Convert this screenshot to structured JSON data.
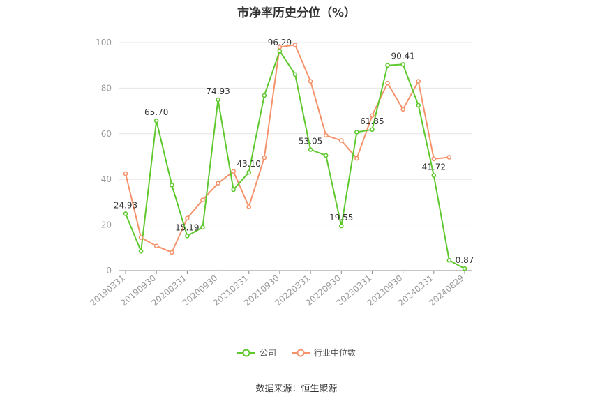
{
  "title": "市净率历史分位（%）",
  "legend": {
    "company": "公司",
    "industry": "行业中位数"
  },
  "source": "数据来源：恒生聚源",
  "colors": {
    "company": "#5ec82d",
    "industry": "#f4936b",
    "grid": "#e6e6e6",
    "axis": "#999999"
  },
  "chart_data": {
    "type": "line",
    "title": "市净率历史分位（%）",
    "ylim": [
      0,
      100
    ],
    "yticks": [
      0,
      20,
      40,
      60,
      80,
      100
    ],
    "grid": true,
    "legend_position": "bottom",
    "x_tick_labels": [
      "20190331",
      "20190930",
      "20200331",
      "20200930",
      "20210331",
      "20210930",
      "20220331",
      "20220930",
      "20230331",
      "20230930",
      "20240331",
      "20240829"
    ],
    "x_tick_indices": [
      0,
      2,
      4,
      6,
      8,
      10,
      12,
      14,
      16,
      18,
      20,
      22
    ],
    "series": [
      {
        "name": "公司",
        "key": "company",
        "values": [
          24.93,
          8.5,
          65.7,
          37.5,
          15.19,
          19.0,
          74.93,
          35.5,
          43.1,
          76.8,
          96.29,
          86.0,
          53.05,
          50.5,
          19.55,
          60.7,
          61.85,
          90.0,
          90.41,
          72.5,
          41.72,
          4.5,
          0.87
        ],
        "labels": {
          "0": "24.93",
          "2": "65.70",
          "4": "15.19",
          "6": "74.93",
          "8": "43.10",
          "10": "96.29",
          "12": "53.05",
          "14": "19.55",
          "16": "61.85",
          "18": "90.41",
          "20": "41.72",
          "22": "0.87"
        }
      },
      {
        "name": "行业中位数",
        "key": "industry",
        "values": [
          42.5,
          14.5,
          10.8,
          8.0,
          23.0,
          31.0,
          38.3,
          43.5,
          28.0,
          49.5,
          98.0,
          99.0,
          83.0,
          59.3,
          57.0,
          49.2,
          68.0,
          82.2,
          70.7,
          83.0,
          49.0,
          49.7,
          null
        ]
      }
    ]
  }
}
